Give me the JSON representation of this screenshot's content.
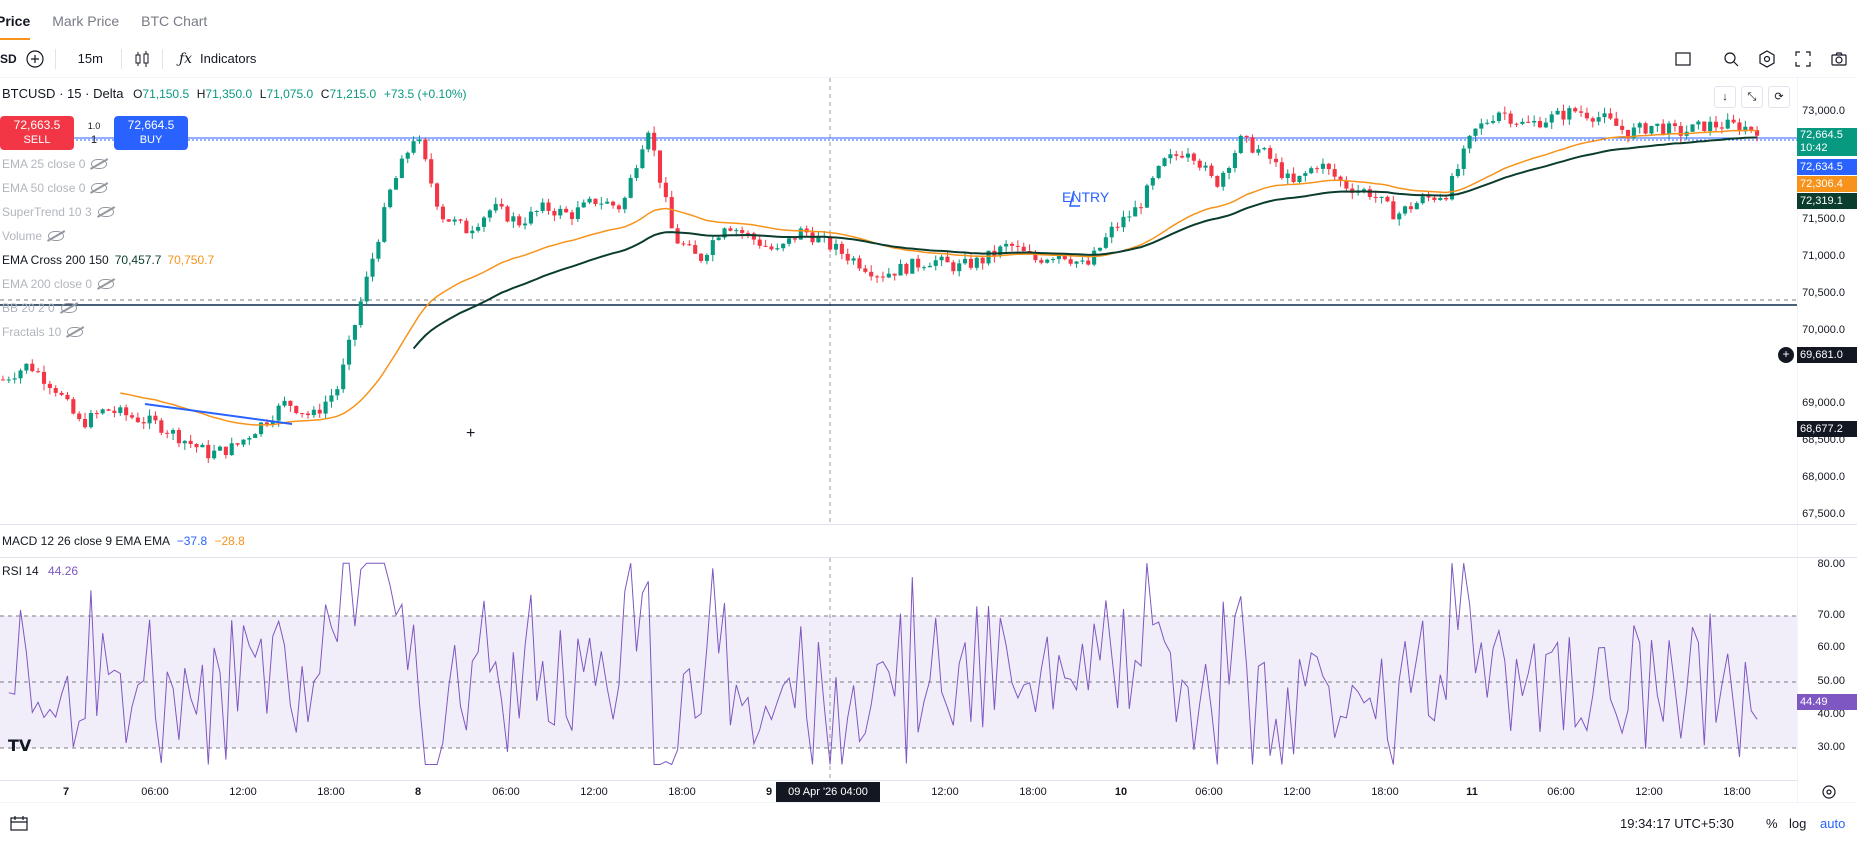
{
  "tabs": [
    "Price",
    "Mark Price",
    "BTC Chart"
  ],
  "toolbar": {
    "symbol_fragment": "SD",
    "interval": "15m",
    "indicators_label": "Indicators"
  },
  "legend": {
    "symbol": "BTCUSD",
    "interval": "15",
    "exchange": "Delta",
    "open": "71,150.5",
    "high": "71,350.0",
    "low": "71,075.0",
    "close": "71,215.0",
    "change": "+73.5 (+0.10%)"
  },
  "trade": {
    "sell_price": "72,663.5",
    "sell_label": "SELL",
    "buy_price": "72,664.5",
    "buy_label": "BUY",
    "qty_top": "1.0",
    "qty": "1"
  },
  "indicators": [
    {
      "label": "EMA 25 close 0"
    },
    {
      "label": "EMA 50 close 0"
    },
    {
      "label": "SuperTrend 10 3"
    },
    {
      "label": "Volume"
    },
    {
      "label": "EMA Cross 200 150",
      "v1": "70,457.7",
      "v2": "70,750.7"
    },
    {
      "label": "EMA 200 close 0"
    },
    {
      "label": "BB 20 2 0"
    },
    {
      "label": "Fractals 10"
    }
  ],
  "price_axis": [
    "73,000.0",
    "71,500.0",
    "71,000.0",
    "70,500.0",
    "70,000.0",
    "69,000.0",
    "68,500.0",
    "68,000.0",
    "67,500.0"
  ],
  "price_labels": {
    "last": "72,664.5",
    "countdown": "10:42",
    "ema1": "72,634.5",
    "ema2": "72,306.4",
    "ema3": "72,319.1",
    "hline": "69,681.0",
    "cross": "68,677.2"
  },
  "annotation": "ENTRY",
  "macd": {
    "label": "MACD 12 26 close 9 EMA EMA",
    "v1": "−37.8",
    "v2": "−28.8"
  },
  "rsi": {
    "label": "RSI 14",
    "value": "44.26",
    "axis_value": "44.49",
    "ticks": [
      "80.00",
      "70.00",
      "60.00",
      "50.00",
      "40.00",
      "30.00"
    ]
  },
  "time_axis": [
    "7",
    "06:00",
    "12:00",
    "18:00",
    "8",
    "06:00",
    "12:00",
    "18:00",
    "9",
    "12:00",
    "18:00",
    "10",
    "06:00",
    "12:00",
    "18:00",
    "11",
    "06:00",
    "12:00",
    "18:00"
  ],
  "crosshair_time": "09 Apr '26  04:00",
  "footer": {
    "time": "19:34:17 UTC+5:30",
    "pct": "%",
    "log": "log",
    "auto": "auto"
  },
  "colors": {
    "up": "#089981",
    "down": "#f23645",
    "ema_orange": "#f7931a",
    "ema_dark": "#0b3d2e",
    "blue": "#2962ff",
    "rsi": "#7e57c2"
  },
  "chart_data": {
    "type": "candlestick",
    "ylim": [
      67500,
      73200
    ],
    "price_close_path": [
      69300,
      69500,
      69200,
      68700,
      68900,
      68800,
      68700,
      68500,
      68300,
      68400,
      68700,
      69000,
      68800,
      69200,
      70500,
      71800,
      72600,
      71500,
      71300,
      71600,
      71400,
      71600,
      71500,
      71700,
      71600,
      72700,
      71200,
      70900,
      71400,
      71200,
      71000,
      71300,
      71100,
      70900,
      70700,
      70800,
      70900,
      70800,
      70900,
      71100,
      70900,
      71000,
      70800,
      71300,
      71600,
      72200,
      72400,
      71900,
      72500,
      72300,
      71900,
      72200,
      71900,
      71800,
      71500,
      71700,
      71800,
      72600,
      72900,
      72700,
      72800,
      72900,
      72800,
      72600,
      72700,
      72600,
      72700,
      72700,
      72650
    ]
  }
}
